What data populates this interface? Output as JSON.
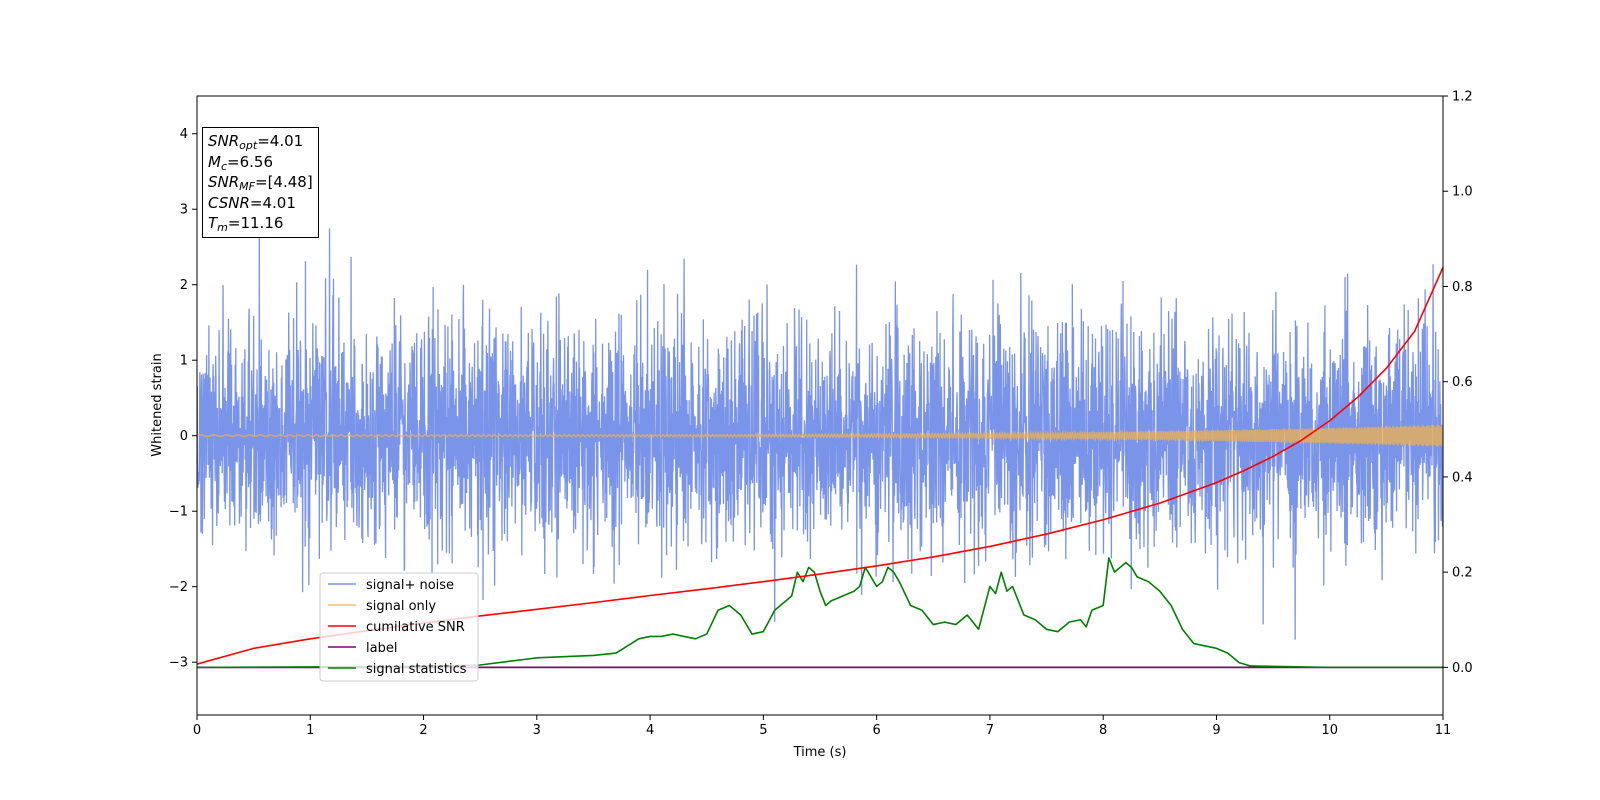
{
  "chart_data": {
    "type": "line",
    "xlabel": "Time (s)",
    "ylabel": "Whitened strain",
    "xlim": [
      0,
      11
    ],
    "ylim": [
      -3.7,
      4.5
    ],
    "y2lim": [
      -0.1,
      1.2
    ],
    "x_ticks": [
      "0",
      "1",
      "2",
      "3",
      "4",
      "5",
      "6",
      "7",
      "8",
      "9",
      "10",
      "11"
    ],
    "x_tick_values": [
      0,
      1,
      2,
      3,
      4,
      5,
      6,
      7,
      8,
      9,
      10,
      11
    ],
    "y_ticks": [
      "−3",
      "−2",
      "−1",
      "0",
      "1",
      "2",
      "3",
      "4"
    ],
    "y_tick_values": [
      -3,
      -2,
      -1,
      0,
      1,
      2,
      3,
      4
    ],
    "y2_ticks": [
      "0.0",
      "0.2",
      "0.4",
      "0.6",
      "0.8",
      "1.0",
      "1.2"
    ],
    "y2_tick_values": [
      0.0,
      0.2,
      0.4,
      0.6,
      0.8,
      1.0,
      1.2
    ],
    "legend_location": "lower-left",
    "series": [
      {
        "name": "signal+ noise",
        "color": "#7994e8",
        "axis": "left",
        "kind": "noise",
        "stats": {
          "mean": 0,
          "std": 0.75
        }
      },
      {
        "name": "signal only",
        "color": "#f2b24c",
        "axis": "left",
        "kind": "chirp",
        "amplitude_start": 0.01,
        "amplitude_end": 0.15
      },
      {
        "name": "cumilative SNR",
        "color": "#ff0000",
        "axis": "right",
        "x": [
          0,
          0.5,
          1,
          1.5,
          2,
          2.5,
          3,
          3.5,
          4,
          4.5,
          5,
          5.5,
          6,
          6.5,
          7,
          7.5,
          8,
          8.5,
          9,
          9.25,
          9.5,
          9.75,
          10,
          10.25,
          10.5,
          10.75,
          11
        ],
        "values": [
          0.007,
          0.04,
          0.06,
          0.077,
          0.093,
          0.108,
          0.122,
          0.136,
          0.151,
          0.165,
          0.18,
          0.196,
          0.213,
          0.232,
          0.254,
          0.28,
          0.31,
          0.345,
          0.388,
          0.414,
          0.443,
          0.477,
          0.518,
          0.568,
          0.628,
          0.706,
          0.84
        ]
      },
      {
        "name": "label",
        "color": "#800080",
        "axis": "right",
        "x": [
          0,
          11
        ],
        "values": [
          0,
          0
        ]
      },
      {
        "name": "signal statistics",
        "color": "#008000",
        "axis": "right",
        "x": [
          0,
          1,
          2,
          2.5,
          3,
          3.5,
          3.7,
          3.9,
          4.0,
          4.1,
          4.2,
          4.3,
          4.4,
          4.5,
          4.6,
          4.7,
          4.8,
          4.9,
          5.0,
          5.1,
          5.2,
          5.25,
          5.3,
          5.35,
          5.4,
          5.45,
          5.5,
          5.55,
          5.6,
          5.7,
          5.8,
          5.85,
          5.9,
          6.0,
          6.05,
          6.1,
          6.15,
          6.2,
          6.3,
          6.4,
          6.5,
          6.6,
          6.7,
          6.8,
          6.9,
          7.0,
          7.05,
          7.1,
          7.15,
          7.2,
          7.3,
          7.4,
          7.5,
          7.6,
          7.7,
          7.8,
          7.85,
          7.9,
          8.0,
          8.05,
          8.1,
          8.15,
          8.2,
          8.25,
          8.3,
          8.4,
          8.5,
          8.6,
          8.7,
          8.8,
          8.9,
          9.0,
          9.1,
          9.2,
          9.3,
          10,
          11
        ],
        "values": [
          0,
          0.001,
          0.002,
          0.005,
          0.02,
          0.025,
          0.03,
          0.06,
          0.065,
          0.065,
          0.07,
          0.065,
          0.06,
          0.07,
          0.12,
          0.13,
          0.11,
          0.07,
          0.075,
          0.12,
          0.14,
          0.15,
          0.2,
          0.18,
          0.21,
          0.2,
          0.16,
          0.13,
          0.14,
          0.15,
          0.16,
          0.17,
          0.21,
          0.17,
          0.18,
          0.21,
          0.2,
          0.18,
          0.13,
          0.12,
          0.09,
          0.095,
          0.09,
          0.11,
          0.08,
          0.17,
          0.155,
          0.2,
          0.16,
          0.17,
          0.11,
          0.1,
          0.08,
          0.075,
          0.095,
          0.1,
          0.085,
          0.12,
          0.13,
          0.23,
          0.2,
          0.21,
          0.22,
          0.21,
          0.19,
          0.18,
          0.16,
          0.13,
          0.08,
          0.05,
          0.045,
          0.04,
          0.03,
          0.01,
          0.003,
          0,
          0
        ]
      }
    ],
    "annotation": {
      "snr_opt": "=4.01",
      "mc": "=6.56",
      "snr_mf": "=[4.48]",
      "csnr": "=4.01",
      "tm": "=11.16"
    }
  }
}
